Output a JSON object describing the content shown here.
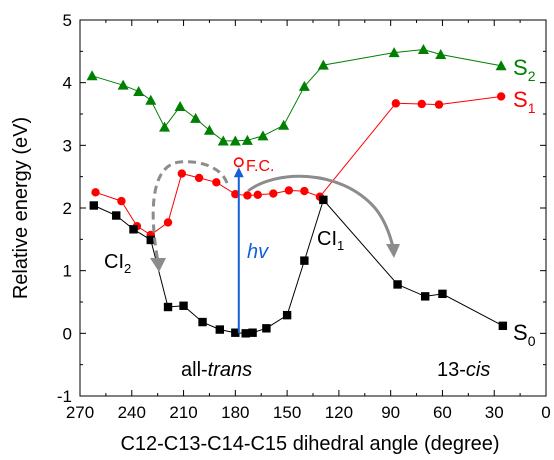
{
  "chart_data": {
    "type": "line",
    "title": "",
    "xlabel": "C12-C13-C14-C15 dihedral angle (degree)",
    "ylabel": "Relative energy (eV)",
    "xlim": [
      270,
      0
    ],
    "ylim": [
      -1,
      5
    ],
    "xticks": [
      "270",
      "240",
      "210",
      "180",
      "150",
      "120",
      "90",
      "60",
      "30",
      "0"
    ],
    "yticks": [
      "-1",
      "0",
      "1",
      "2",
      "3",
      "4",
      "5"
    ],
    "grid": false,
    "series": [
      {
        "name": "S2",
        "color": "#008000",
        "marker": "triangle",
        "x": [
          263,
          245,
          236,
          229,
          221,
          212,
          203,
          195,
          187,
          180,
          173,
          164,
          152,
          140,
          129,
          88,
          71,
          61,
          26
        ],
        "y": [
          4.11,
          3.96,
          3.86,
          3.72,
          3.29,
          3.62,
          3.43,
          3.24,
          3.07,
          3.07,
          3.08,
          3.15,
          3.32,
          3.94,
          4.28,
          4.48,
          4.53,
          4.45,
          4.27
        ]
      },
      {
        "name": "S1",
        "color": "#ff0000",
        "marker": "circle",
        "x": [
          261,
          246,
          237,
          229,
          219,
          211,
          201,
          191,
          180,
          173,
          167,
          158,
          149,
          140,
          131,
          87,
          72,
          62,
          26
        ],
        "y": [
          2.25,
          2.11,
          1.71,
          1.57,
          1.77,
          2.55,
          2.48,
          2.41,
          2.22,
          2.2,
          2.21,
          2.23,
          2.28,
          2.27,
          2.18,
          3.67,
          3.66,
          3.65,
          3.78
        ]
      },
      {
        "name": "S0",
        "color": "#000000",
        "marker": "square",
        "x": [
          262,
          249,
          239,
          229,
          219,
          210,
          199,
          189,
          180,
          174,
          170,
          162,
          150,
          140,
          129,
          86,
          70,
          60,
          25
        ],
        "y": [
          2.04,
          1.88,
          1.66,
          1.49,
          0.42,
          0.44,
          0.18,
          0.06,
          0.01,
          0.0,
          0.01,
          0.08,
          0.29,
          1.16,
          2.13,
          0.78,
          0.59,
          0.63,
          0.12
        ]
      }
    ],
    "series_labels": [
      "S",
      "2",
      "S",
      "1",
      "S",
      "0"
    ],
    "annotations": {
      "fc": "F.C.",
      "hv": "hv",
      "ci1_main": "CI",
      "ci1_sub": "1",
      "ci2_main": "CI",
      "ci2_sub": "2",
      "all_trans_prefix": "all-",
      "all_trans_italic": "trans",
      "cis_prefix": "13-",
      "cis_italic": "cis"
    },
    "fc_point": {
      "x": 178,
      "y": 2.73
    },
    "arrow_color": "#1560d8",
    "path_arrow_color": "#8c8c8c"
  }
}
